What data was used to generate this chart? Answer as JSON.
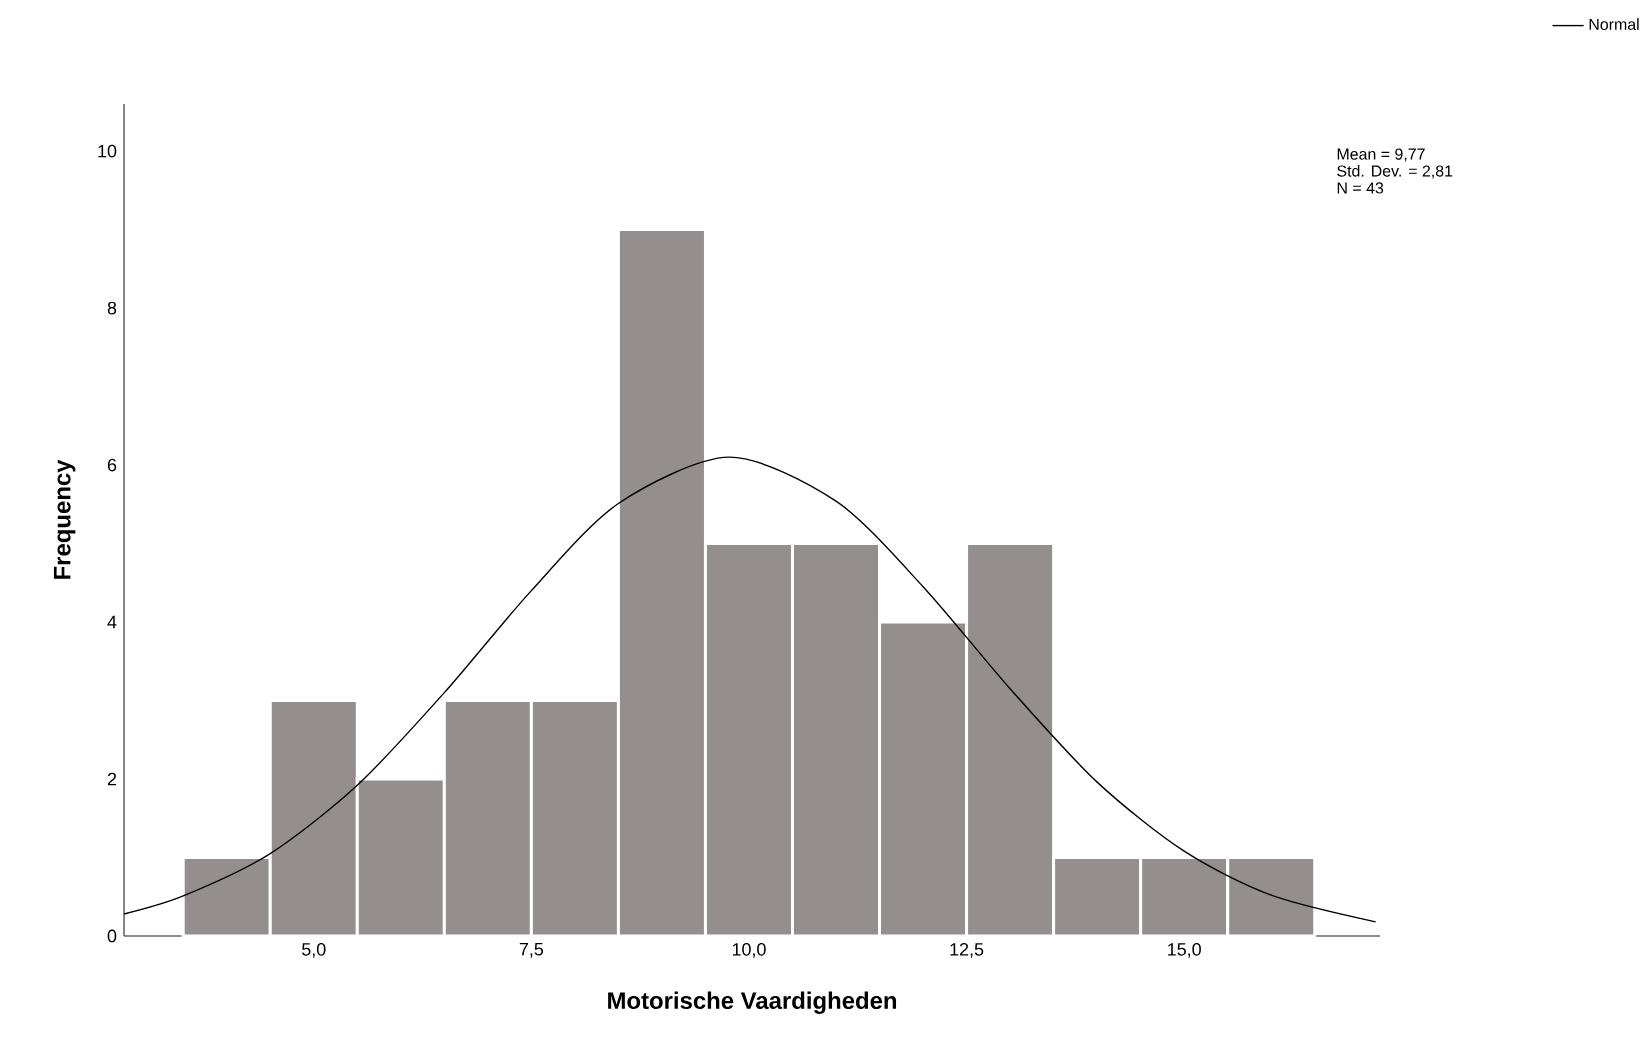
{
  "chart_data": {
    "type": "histogram",
    "xlabel": "Motorische Vaardigheden",
    "ylabel": "Frequency",
    "bins": [
      3.5,
      4.5,
      5.5,
      6.5,
      7.5,
      8.5,
      9.5,
      10.5,
      11.5,
      12.5,
      13.5,
      14.5,
      15.5,
      16.5
    ],
    "series": [
      {
        "color": "#948f8e",
        "values": [
          1,
          3,
          2,
          3,
          3,
          9,
          5,
          5,
          4,
          5,
          1,
          1,
          1
        ]
      },
      {
        "type": "line",
        "name": "Normal",
        "color": "#000000",
        "x": [
          2.82,
          3.5,
          4.5,
          5.5,
          6.5,
          7.5,
          8.5,
          9.77,
          11,
          12,
          13,
          14,
          15,
          16,
          17.2
        ],
        "values": [
          0.28,
          0.51,
          1.05,
          1.92,
          3.1,
          4.4,
          5.51,
          6.1,
          5.54,
          4.45,
          3.15,
          1.96,
          1.08,
          0.52,
          0.18
        ]
      }
    ],
    "xlim": [
      2.82,
      17.25
    ],
    "ylim": [
      0,
      10.6
    ],
    "xticks": [
      {
        "value": 5,
        "label": "5,0"
      },
      {
        "value": 7.5,
        "label": "7,5"
      },
      {
        "value": 10,
        "label": "10,0"
      },
      {
        "value": 12.5,
        "label": "12,5"
      },
      {
        "value": 15,
        "label": "15,0"
      }
    ],
    "yticks": [
      0,
      2,
      4,
      6,
      8,
      10
    ],
    "legend": "top right",
    "annotations": [
      "Mean = 9,77",
      "Std. Dev. = 2,81",
      "N = 43"
    ]
  }
}
